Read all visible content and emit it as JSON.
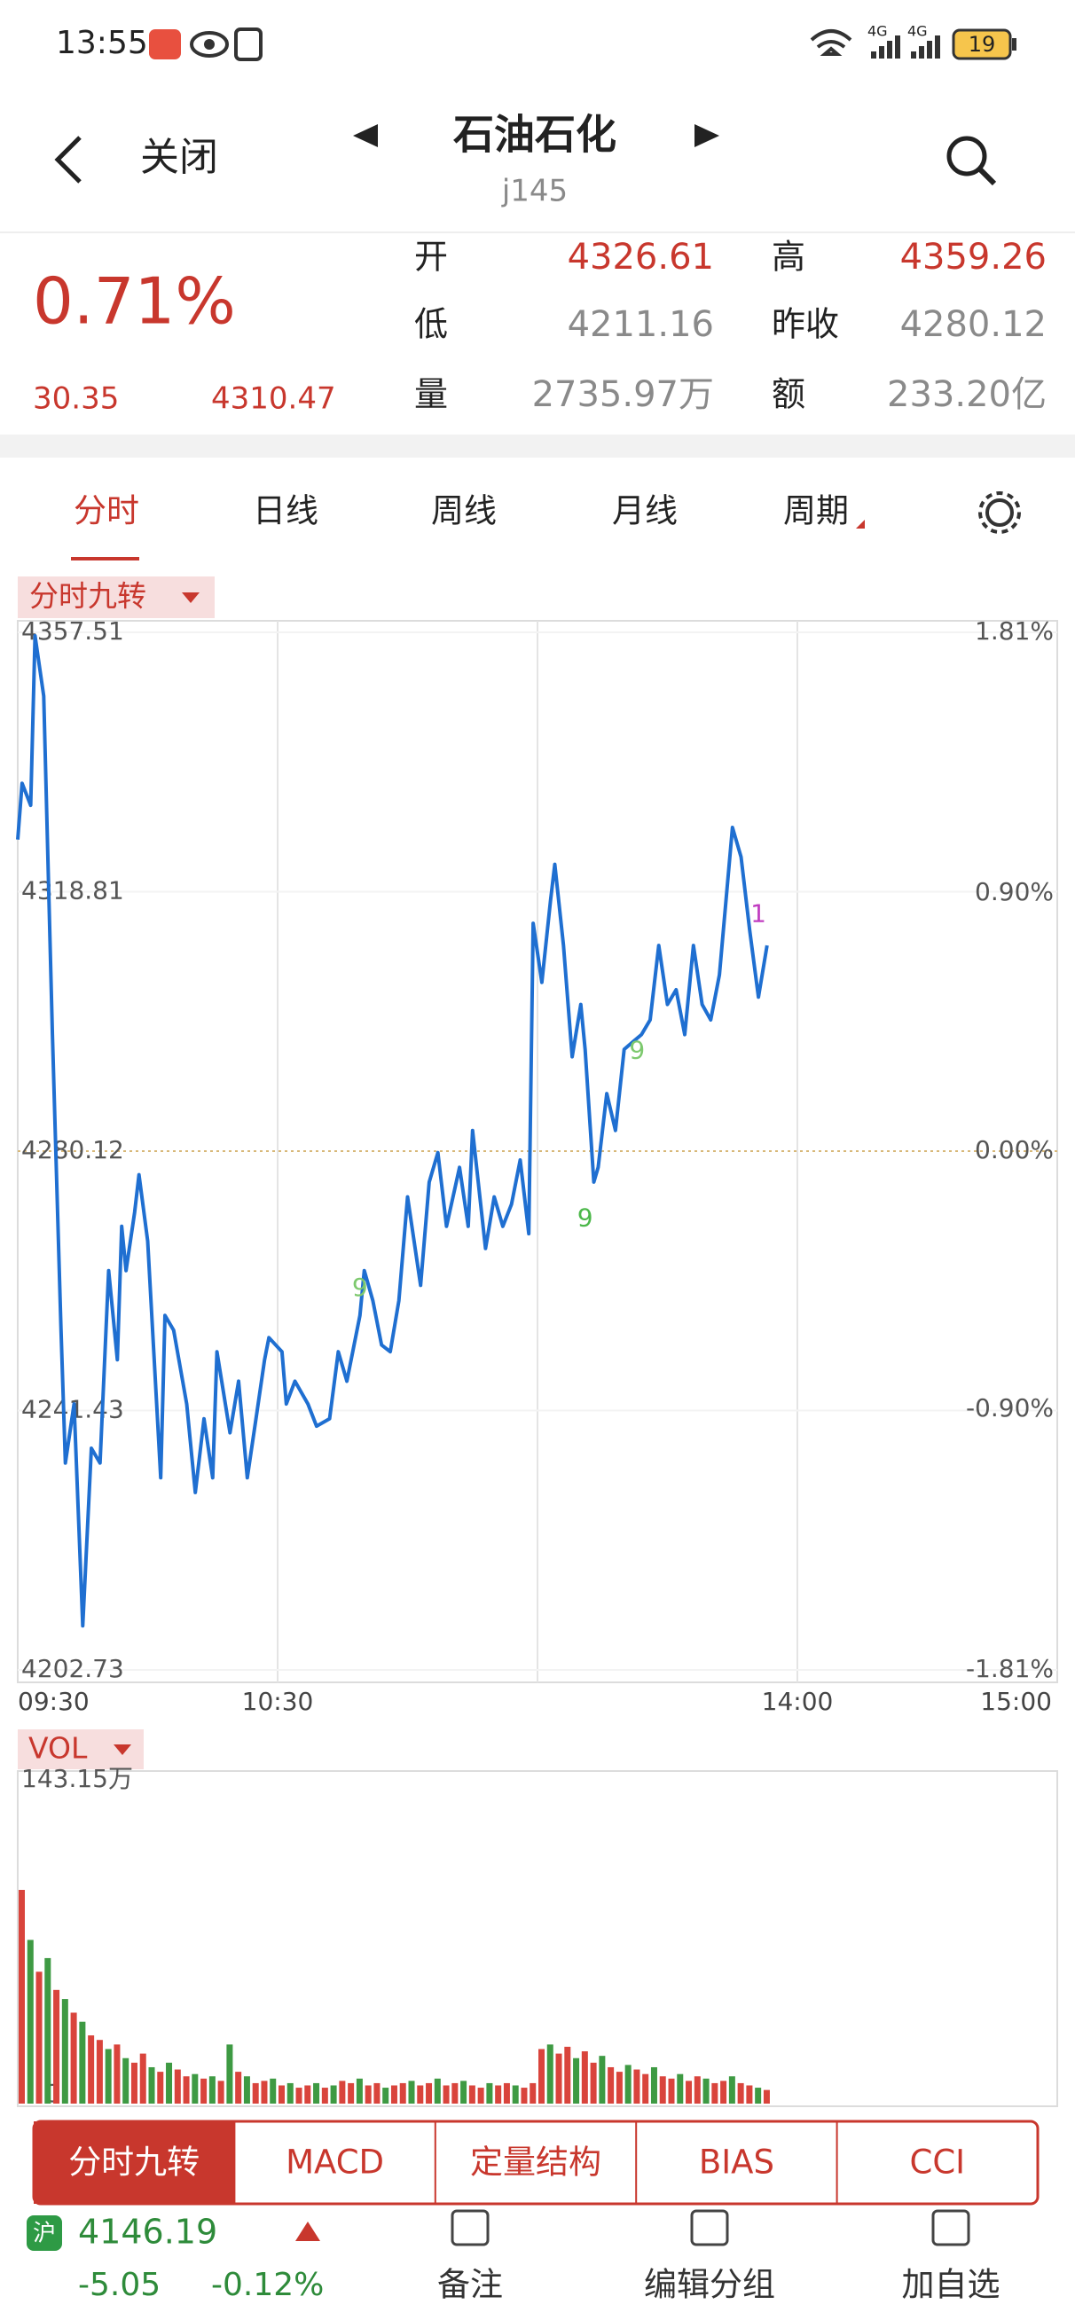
{
  "status_bar": {
    "time": "13:55",
    "network": [
      "4G",
      "4G"
    ],
    "battery": "19"
  },
  "header": {
    "back": "关闭",
    "title": "石油石化",
    "subtitle": "j145"
  },
  "quote": {
    "change_pct": "0.71%",
    "change": "30.35",
    "price": "4310.47",
    "fields": [
      {
        "label": "开",
        "value": "4326.61"
      },
      {
        "label": "高",
        "value": "4359.26"
      },
      {
        "label": "低",
        "value": "4211.16"
      },
      {
        "label": "昨收",
        "value": "4280.12"
      },
      {
        "label": "量",
        "value": "2735.97万"
      },
      {
        "label": "额",
        "value": "233.20亿"
      }
    ]
  },
  "tabs": [
    "分时",
    "日线",
    "周线",
    "月线",
    "周期"
  ],
  "indicator": "分时九转",
  "volume_indicator": "VOL",
  "chart_data": [
    {
      "type": "line",
      "color": "#1f6fd1",
      "x": [
        0,
        1,
        3,
        4,
        6,
        8,
        10,
        11,
        13,
        15,
        17,
        19,
        21,
        23,
        24,
        25,
        27,
        28,
        30,
        33,
        34,
        36,
        39,
        41,
        43,
        45,
        46,
        49,
        51,
        53,
        55,
        57,
        58,
        61,
        62,
        64,
        67,
        69,
        72,
        74,
        76,
        79,
        80,
        82,
        84,
        86,
        88,
        90,
        93,
        95,
        97,
        99,
        102,
        104,
        105,
        108,
        110,
        112,
        114,
        116,
        118,
        119,
        121,
        123,
        124,
        126,
        128,
        130,
        131,
        133,
        134,
        136,
        138,
        140,
        142,
        144,
        146,
        148,
        150,
        152,
        154,
        156,
        158,
        160,
        162,
        165,
        167,
        169,
        171,
        173
      ],
      "values": [
        4326.6,
        4335,
        4331.7,
        4357,
        4348,
        4297.5,
        4253.4,
        4233.6,
        4242.4,
        4209.3,
        4235.8,
        4233.6,
        4262.3,
        4249,
        4268.9,
        4262.3,
        4271,
        4276.6,
        4266.7,
        4231.4,
        4255.6,
        4253.4,
        4242.4,
        4229.2,
        4240.2,
        4231.4,
        4250.2,
        4238.1,
        4245.8,
        4231.4,
        4240.2,
        4249,
        4252.3,
        4250.2,
        4242.4,
        4245.8,
        4242.4,
        4239.1,
        4240.2,
        4250.2,
        4245.8,
        4255.6,
        4262.3,
        4257.8,
        4251.2,
        4250.2,
        4257.8,
        4273.3,
        4260.1,
        4275.5,
        4279.9,
        4268.9,
        4277.7,
        4268.9,
        4283.2,
        4265.6,
        4273.3,
        4268.9,
        4272.2,
        4278.8,
        4267.8,
        4314.1,
        4305.3,
        4317.4,
        4322.9,
        4310.8,
        4294.2,
        4302,
        4295.3,
        4275.5,
        4277.7,
        4288.7,
        4283.2,
        4295.3,
        4296.4,
        4297.5,
        4299.7,
        4310.8,
        4302,
        4304.2,
        4297.5,
        4310.8,
        4302,
        4299.7,
        4306.4,
        4328.4,
        4324,
        4313,
        4303.1,
        4310.8
      ],
      "xlim": [
        0,
        240
      ],
      "xticks": [
        {
          "value": 0,
          "label": "09:30"
        },
        {
          "value": 60,
          "label": "10:30"
        },
        {
          "value": 180,
          "label": "14:00"
        },
        {
          "value": 240,
          "label": "15:00"
        }
      ],
      "ylim": [
        4202.73,
        4357.51
      ],
      "yticks": [
        4202.73,
        4241.43,
        4280.12,
        4318.81,
        4357.51
      ],
      "y2lim": [
        -1.81,
        1.81
      ],
      "y2ticks": [
        {
          "value": -1.81,
          "label": "-1.81%"
        },
        {
          "value": -0.9,
          "label": "-0.90%"
        },
        {
          "value": 0,
          "label": "0.00%"
        },
        {
          "value": 0.9,
          "label": "0.90%"
        },
        {
          "value": 1.81,
          "label": "1.81%"
        }
      ],
      "grid": true,
      "annotations": [
        {
          "text": "9",
          "x": 79,
          "y": 4259.6,
          "color": "#7dc96e"
        },
        {
          "text": "9",
          "x": 131,
          "y": 4270,
          "color": "#4cb84a"
        },
        {
          "text": "9",
          "x": 143,
          "y": 4295,
          "color": "#7dc96e"
        },
        {
          "text": "1",
          "x": 171,
          "y": 4315.4,
          "color": "#c03cc0"
        }
      ]
    },
    {
      "type": "bar",
      "x": [
        0,
        2,
        4,
        6,
        8,
        10,
        12,
        14,
        16,
        18,
        20,
        22,
        24,
        26,
        28,
        30,
        32,
        34,
        36,
        38,
        40,
        42,
        44,
        46,
        48,
        50,
        52,
        54,
        56,
        58,
        60,
        62,
        64,
        66,
        68,
        70,
        72,
        74,
        76,
        78,
        80,
        82,
        84,
        86,
        88,
        90,
        92,
        94,
        96,
        98,
        100,
        102,
        104,
        106,
        108,
        110,
        112,
        114,
        116,
        118,
        120,
        122,
        124,
        126,
        128,
        130,
        132,
        134,
        136,
        138,
        140,
        142,
        144,
        146,
        148,
        150,
        152,
        154,
        156,
        158,
        160,
        162,
        164,
        166,
        168,
        170,
        172
      ],
      "values": [
        94,
        72,
        58,
        64,
        50,
        46,
        40,
        36,
        30,
        28,
        24,
        26,
        20,
        18,
        22,
        16,
        14,
        18,
        15,
        12,
        13,
        11,
        12,
        10,
        26,
        14,
        12,
        9,
        10,
        11,
        8,
        9,
        7,
        8,
        9,
        7,
        8,
        10,
        9,
        11,
        8,
        9,
        7,
        8,
        9,
        10,
        8,
        9,
        11,
        8,
        9,
        10,
        8,
        7,
        9,
        8,
        9,
        8,
        7,
        9,
        24,
        26,
        22,
        25,
        20,
        23,
        18,
        21,
        16,
        14,
        17,
        15,
        13,
        16,
        12,
        11,
        13,
        10,
        12,
        11,
        9,
        10,
        12,
        9,
        8,
        7,
        6
      ],
      "colors": [
        "#d9443c",
        "#3e9a43",
        "#d9443c",
        "#3e9a43",
        "#d9443c",
        "#3e9a43",
        "#d9443c",
        "#3e9a43",
        "#d9443c",
        "#d9443c",
        "#3e9a43",
        "#d9443c",
        "#3e9a43",
        "#d9443c",
        "#d9443c",
        "#3e9a43",
        "#d9443c",
        "#3e9a43",
        "#d9443c",
        "#d9443c",
        "#3e9a43",
        "#d9443c",
        "#3e9a43",
        "#d9443c",
        "#3e9a43",
        "#d9443c",
        "#3e9a43",
        "#d9443c",
        "#d9443c",
        "#3e9a43",
        "#d9443c",
        "#3e9a43",
        "#d9443c",
        "#d9443c",
        "#3e9a43",
        "#d9443c",
        "#3e9a43",
        "#d9443c",
        "#d9443c",
        "#3e9a43",
        "#d9443c",
        "#d9443c",
        "#3e9a43",
        "#d9443c",
        "#d9443c",
        "#3e9a43",
        "#d9443c",
        "#d9443c",
        "#3e9a43",
        "#d9443c",
        "#d9443c",
        "#3e9a43",
        "#d9443c",
        "#d9443c",
        "#3e9a43",
        "#d9443c",
        "#d9443c",
        "#3e9a43",
        "#d9443c",
        "#d9443c",
        "#d9443c",
        "#3e9a43",
        "#d9443c",
        "#d9443c",
        "#3e9a43",
        "#d9443c",
        "#d9443c",
        "#3e9a43",
        "#d9443c",
        "#d9443c",
        "#3e9a43",
        "#d9443c",
        "#d9443c",
        "#3e9a43",
        "#d9443c",
        "#d9443c",
        "#3e9a43",
        "#d9443c",
        "#d9443c",
        "#3e9a43",
        "#d9443c",
        "#d9443c",
        "#3e9a43",
        "#d9443c",
        "#d9443c",
        "#3e9a43",
        "#d9443c"
      ],
      "xlim": [
        0,
        240
      ],
      "ylim": [
        0,
        143.15
      ],
      "yticks": [
        0,
        {
          "value": 143.15,
          "label": "143.15万"
        }
      ]
    }
  ],
  "indicator_tabs": [
    "分时九转",
    "MACD",
    "定量结构",
    "BIAS",
    "CCI"
  ],
  "footer": {
    "market": "沪",
    "index": "4146.19",
    "change": "-5.05",
    "change_pct": "-0.12%",
    "actions": [
      "备注",
      "编辑分组",
      "加自选"
    ]
  }
}
